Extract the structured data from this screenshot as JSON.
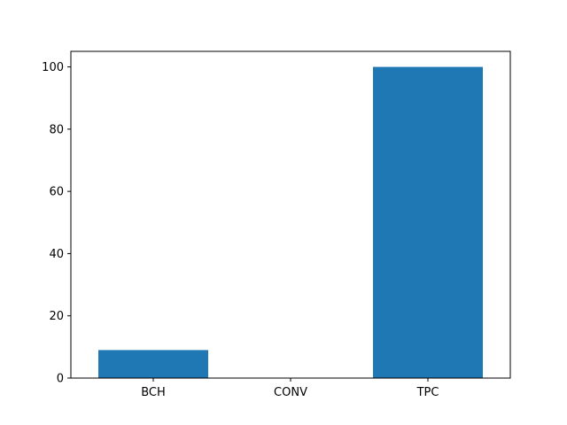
{
  "chart_data": {
    "type": "bar",
    "categories": [
      "BCH",
      "CONV",
      "TPC"
    ],
    "values": [
      9,
      0,
      100
    ],
    "title": "",
    "xlabel": "",
    "ylabel": "",
    "ylim": [
      0,
      105
    ],
    "yticks": [
      0,
      20,
      40,
      60,
      80,
      100
    ],
    "grid": false,
    "legend": "none",
    "bar_color": "#1f77b4"
  }
}
